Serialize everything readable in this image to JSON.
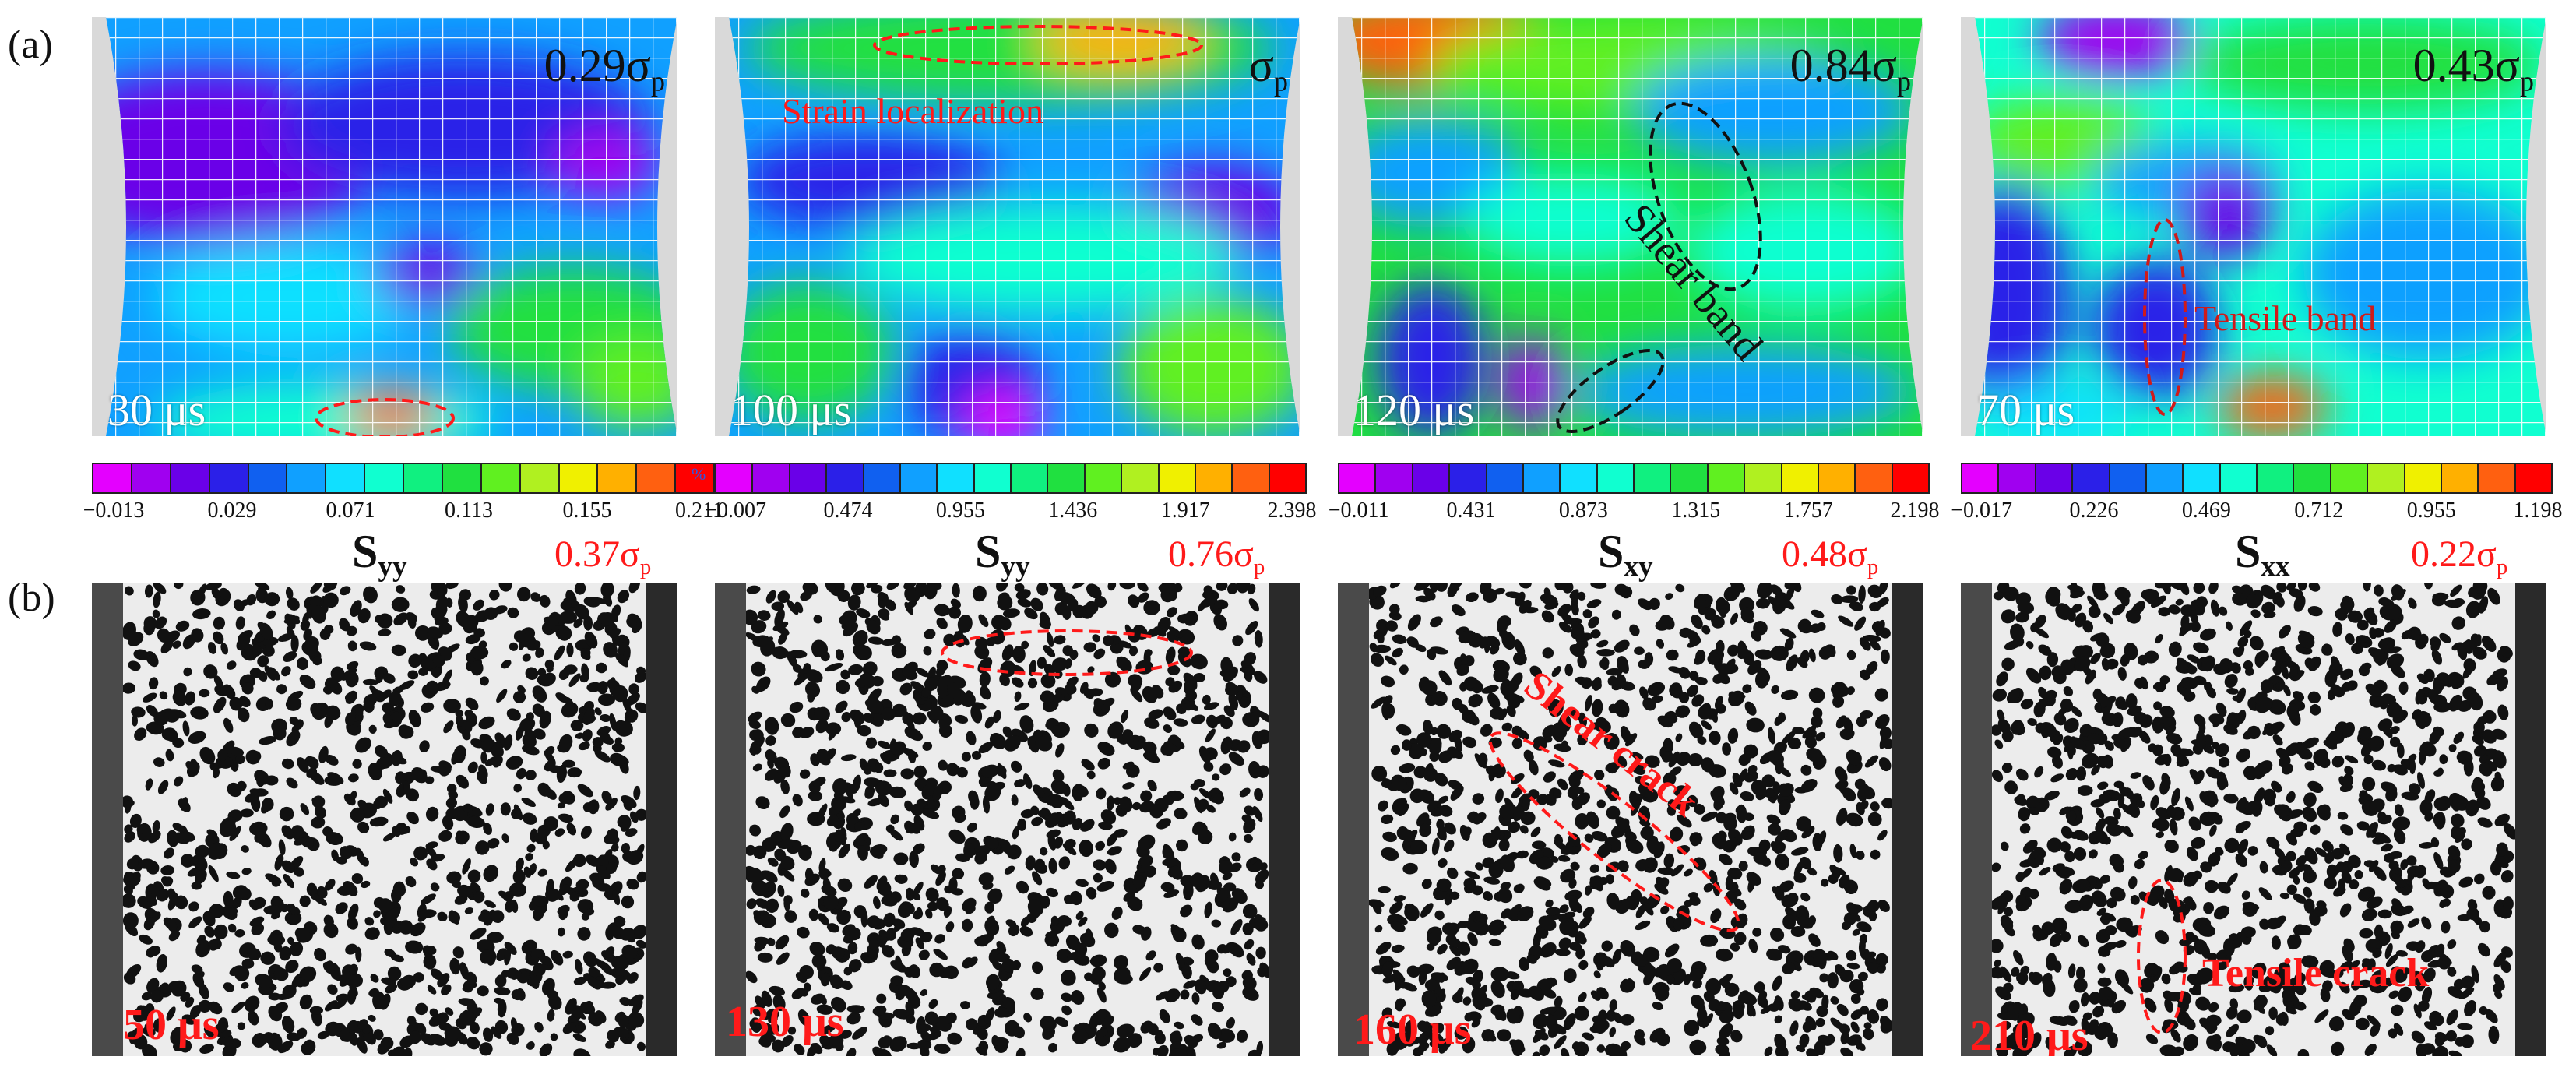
{
  "row_labels": {
    "a": "(a)",
    "b": "(b)"
  },
  "colors": {
    "red_text": "#ff1a1a",
    "white_text": "#ffffff",
    "black_text": "#111111"
  },
  "colormap": [
    "#e400ff",
    "#a000f0",
    "#6a00e8",
    "#2b20e8",
    "#1060f0",
    "#10a0ff",
    "#10e0ff",
    "#10ffd0",
    "#10f080",
    "#20e040",
    "#60f020",
    "#b0f020",
    "#f0f000",
    "#ffb000",
    "#ff6010",
    "#ff0000"
  ],
  "unit_label": "%",
  "top_panels": [
    {
      "stress": "0.29σ",
      "stress_sub": "p",
      "time": "30 μs",
      "ticks": [
        "−0.013",
        "0.029",
        "0.071",
        "0.113",
        "0.155",
        "0.211"
      ],
      "field": "S",
      "field_sub": "yy",
      "red_stress": "0.37σ",
      "red_stress_sub": "p"
    },
    {
      "stress": "σ",
      "stress_sub": "p",
      "time": "100 μs",
      "annotation": "Strain localization",
      "ticks": [
        "−0.007",
        "0.474",
        "0.955",
        "1.436",
        "1.917",
        "2.398"
      ],
      "field": "S",
      "field_sub": "yy",
      "red_stress": "0.76σ",
      "red_stress_sub": "p"
    },
    {
      "stress": "0.84σ",
      "stress_sub": "p",
      "time": "120 μs",
      "annotation": "Shear band",
      "ticks": [
        "−0.011",
        "0.431",
        "0.873",
        "1.315",
        "1.757",
        "2.198"
      ],
      "field": "S",
      "field_sub": "xy",
      "red_stress": "0.48σ",
      "red_stress_sub": "p"
    },
    {
      "stress": "0.43σ",
      "stress_sub": "p",
      "time": "70 μs",
      "annotation": "Tensile band",
      "ticks": [
        "−0.017",
        "0.226",
        "0.469",
        "0.712",
        "0.955",
        "1.198"
      ],
      "field": "S",
      "field_sub": "xx",
      "red_stress": "0.22σ",
      "red_stress_sub": "p"
    }
  ],
  "bottom_panels": [
    {
      "time": "50 μs"
    },
    {
      "time": "130 μs"
    },
    {
      "time": "160 μs",
      "annotation": "Shear crack"
    },
    {
      "time": "210 μs",
      "annotation": "Tensile crack"
    }
  ]
}
